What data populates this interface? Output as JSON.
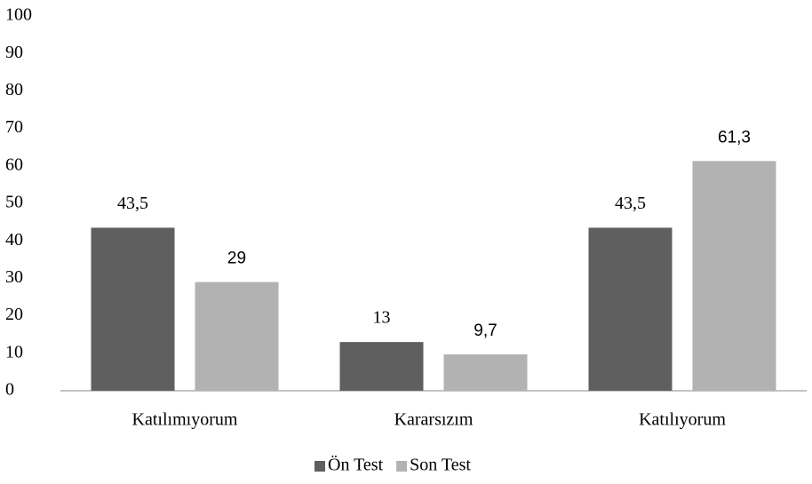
{
  "chart_data": {
    "type": "bar",
    "categories": [
      "Katılımıyorum",
      "Kararsızım",
      "Katılıyorum"
    ],
    "series": [
      {
        "name": "Ön Test",
        "color": "#5f5f5f",
        "values": [
          43.5,
          13,
          43.5
        ],
        "value_labels": [
          "43,5",
          "13",
          "43,5"
        ]
      },
      {
        "name": "Son Test",
        "color": "#b2b2b2",
        "values": [
          29,
          9.7,
          61.3
        ],
        "value_labels": [
          "29",
          "9,7",
          "61,3"
        ]
      }
    ],
    "ylim": [
      0,
      100
    ],
    "yticks": [
      0,
      10,
      20,
      30,
      40,
      50,
      60,
      70,
      80,
      90,
      100
    ],
    "grid": false,
    "legend": "bottom"
  }
}
